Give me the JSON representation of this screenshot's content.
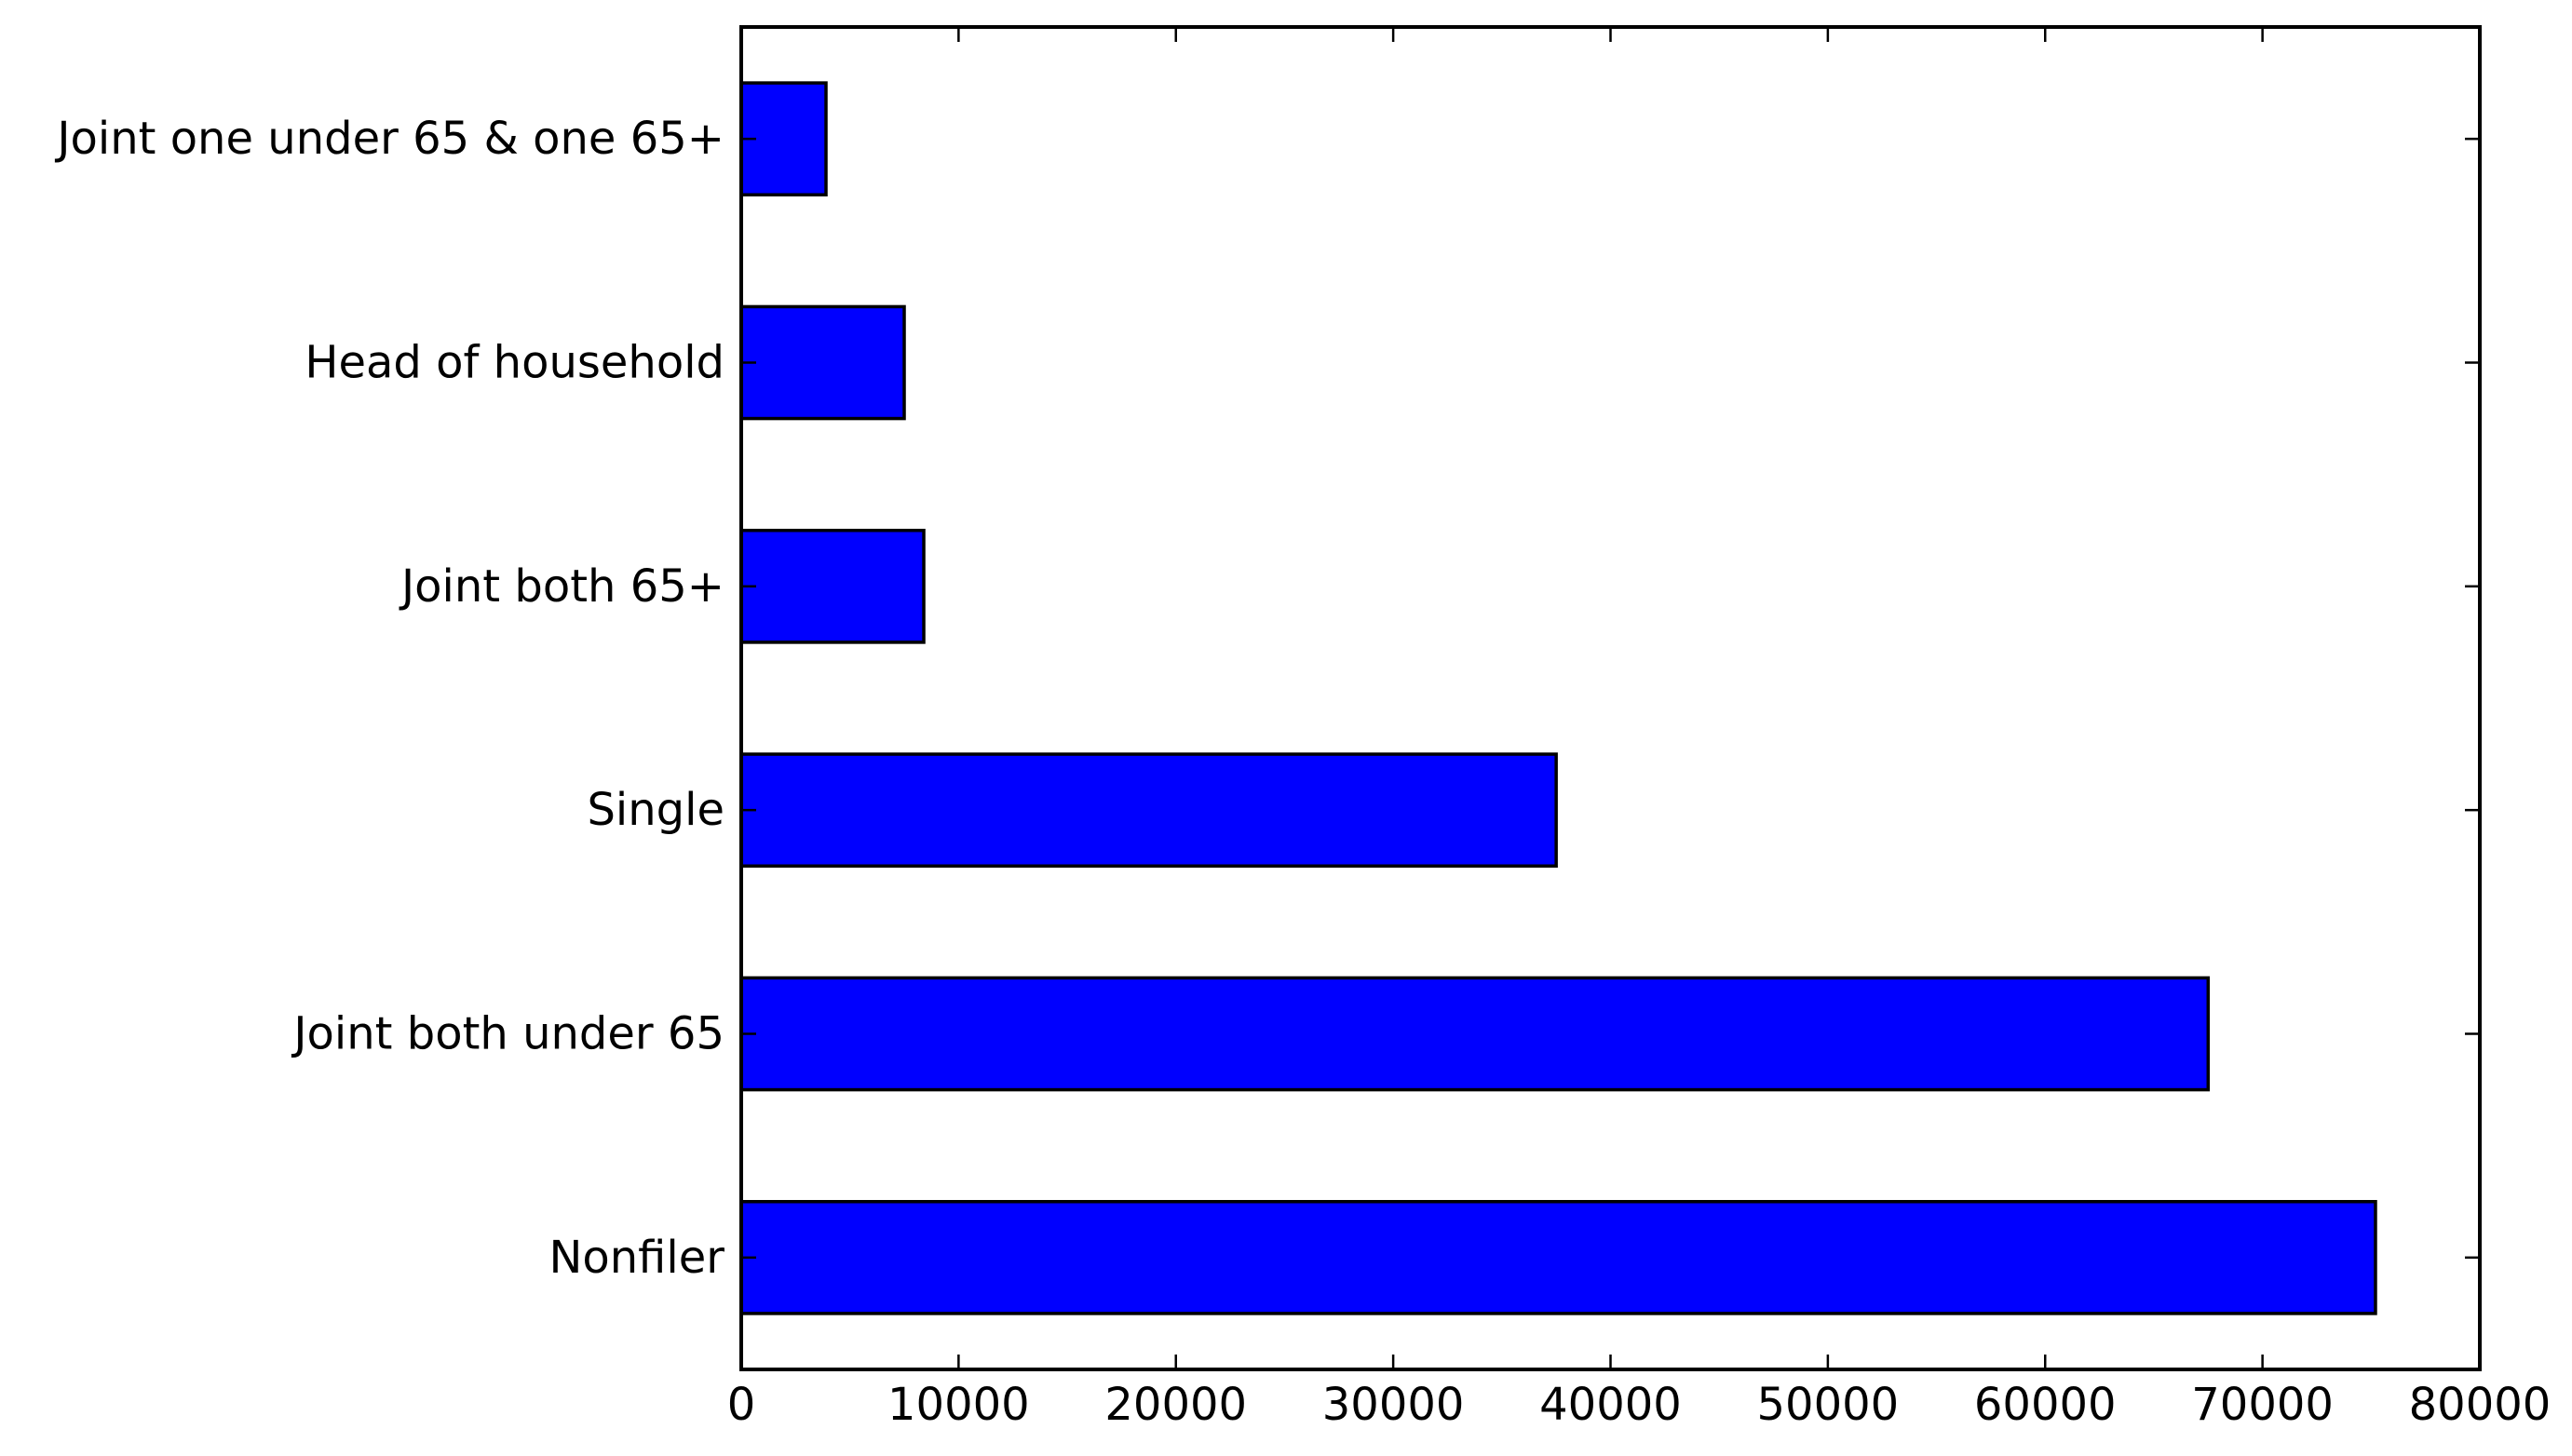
{
  "chart_data": {
    "type": "bar",
    "orientation": "horizontal",
    "title": "",
    "xlabel": "",
    "ylabel": "",
    "categories": [
      "Nonfiler",
      "Joint both under 65",
      "Single",
      "Joint both 65+",
      "Head of household",
      "Joint one under 65 & one 65+"
    ],
    "values": [
      75200,
      67500,
      37500,
      8400,
      7500,
      3900
    ],
    "xlim": [
      0,
      80000
    ],
    "xticks": [
      0,
      10000,
      20000,
      30000,
      40000,
      50000,
      60000,
      70000,
      80000
    ],
    "xtick_labels": [
      "0",
      "10000",
      "20000",
      "30000",
      "40000",
      "50000",
      "60000",
      "70000",
      "80000"
    ],
    "grid": false,
    "legend": "none",
    "bar_color": "#0000ff",
    "edge_color": "#000000"
  }
}
